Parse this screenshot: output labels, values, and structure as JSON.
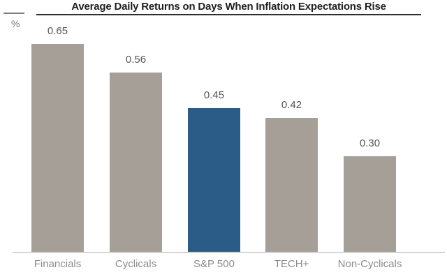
{
  "header": {
    "title": "Average Daily Returns on Days When Inflation Expectations Rise",
    "unit_label": "%"
  },
  "chart_data": {
    "type": "bar",
    "title": "Average Daily Returns on Days When Inflation Expectations Rise",
    "categories": [
      "Financials",
      "Cyclicals",
      "S&P 500",
      "TECH+",
      "Non-Cyclicals"
    ],
    "values": [
      0.65,
      0.56,
      0.45,
      0.42,
      0.3
    ],
    "value_labels": [
      "0.65",
      "0.56",
      "0.45",
      "0.42",
      "0.30"
    ],
    "bar_colors": [
      "#A69F98",
      "#A69F98",
      "#2B5C87",
      "#A69F98",
      "#A69F98"
    ],
    "highlight_category": "S&P 500",
    "highlight_index": 2,
    "xlabel": "",
    "ylabel": "%",
    "ylim": [
      0,
      0.7
    ],
    "grid": false,
    "legend": "none",
    "colors": {
      "default_bar": "#A69F98",
      "highlight_bar": "#2B5C87",
      "title_text": "#1F1F1F",
      "title_underline": "#2E2E2E",
      "value_label": "#575757",
      "category_label": "#8C8C8C",
      "baseline": "#D5D5D5",
      "background": "#FFFFFF"
    }
  }
}
